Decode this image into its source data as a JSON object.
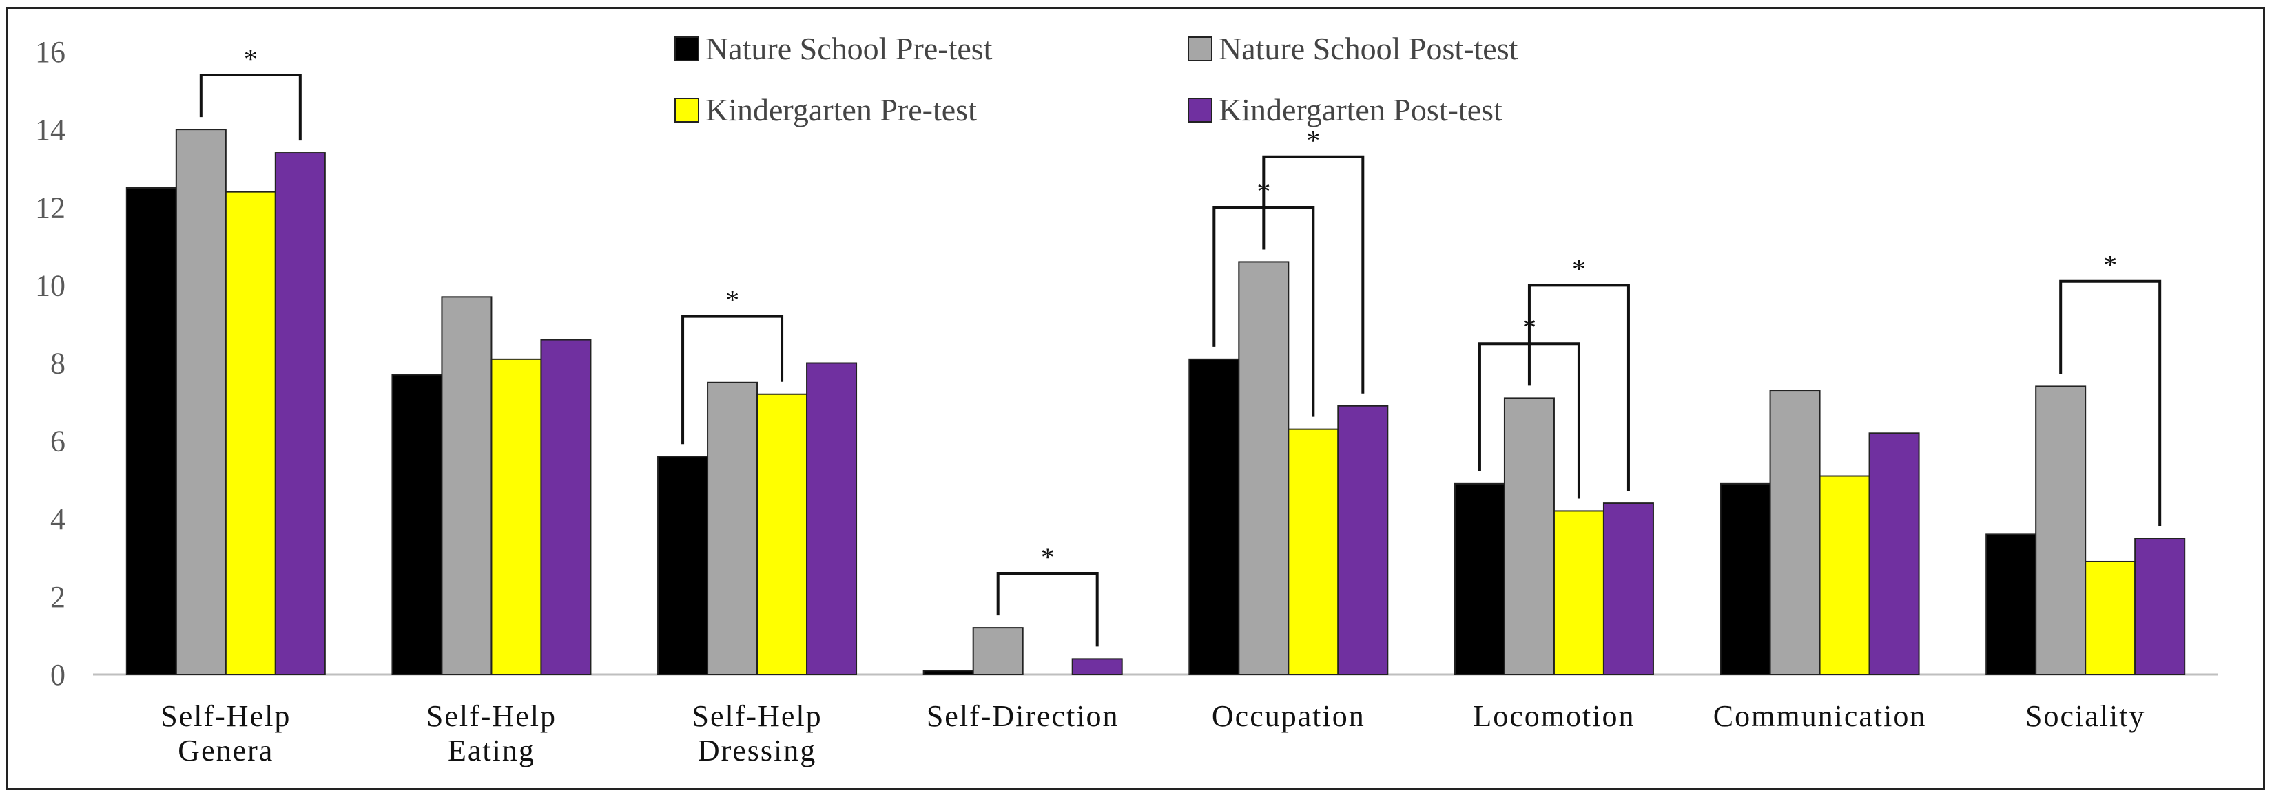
{
  "chart_data": {
    "type": "bar",
    "title": "",
    "xlabel": "",
    "ylabel": "",
    "ylim": [
      0,
      16
    ],
    "yticks": [
      0,
      2,
      4,
      6,
      8,
      10,
      12,
      14,
      16
    ],
    "grid": false,
    "legend_position": "top-center",
    "categories": [
      [
        "Self-Help",
        "Genera"
      ],
      [
        "Self-Help",
        "Eating"
      ],
      [
        "Self-Help",
        "Dressing"
      ],
      [
        "Self-Direction"
      ],
      [
        "Occupation"
      ],
      [
        "Locomotion"
      ],
      [
        "Communication"
      ],
      [
        "Sociality"
      ]
    ],
    "series": [
      {
        "name": "Nature School Pre-test",
        "color": "#000000",
        "values": [
          12.5,
          7.7,
          5.6,
          0.1,
          8.1,
          4.9,
          4.9,
          3.6
        ]
      },
      {
        "name": "Nature School Post-test",
        "color": "#A6A6A6",
        "values": [
          14.0,
          9.7,
          7.5,
          1.2,
          10.6,
          7.1,
          7.3,
          7.4
        ]
      },
      {
        "name": "Kindergarten Pre-test",
        "color": "#FFFF00",
        "values": [
          12.4,
          8.1,
          7.2,
          0.0,
          6.3,
          4.2,
          5.1,
          2.9
        ]
      },
      {
        "name": "Kindergarten Post-test",
        "color": "#7030A0",
        "values": [
          13.4,
          8.6,
          8.0,
          0.4,
          6.9,
          4.4,
          6.2,
          3.5
        ]
      }
    ],
    "annotations": [
      {
        "category": 0,
        "from_series": 1,
        "to_series": 3,
        "top": 15.4,
        "label": "*"
      },
      {
        "category": 2,
        "from_series": 0,
        "to_series": 2,
        "top": 9.2,
        "label": "*"
      },
      {
        "category": 3,
        "from_series": 1,
        "to_series": 3,
        "top": 2.6,
        "label": "*"
      },
      {
        "category": 4,
        "from_series": 0,
        "to_series": 2,
        "top": 12.0,
        "label": "*"
      },
      {
        "category": 4,
        "from_series": 1,
        "to_series": 3,
        "top": 13.3,
        "label": "*"
      },
      {
        "category": 5,
        "from_series": 0,
        "to_series": 2,
        "top": 8.5,
        "label": "*"
      },
      {
        "category": 5,
        "from_series": 1,
        "to_series": 3,
        "top": 10.0,
        "label": "*"
      },
      {
        "category": 7,
        "from_series": 1,
        "to_series": 3,
        "top": 10.1,
        "label": "*"
      }
    ]
  }
}
